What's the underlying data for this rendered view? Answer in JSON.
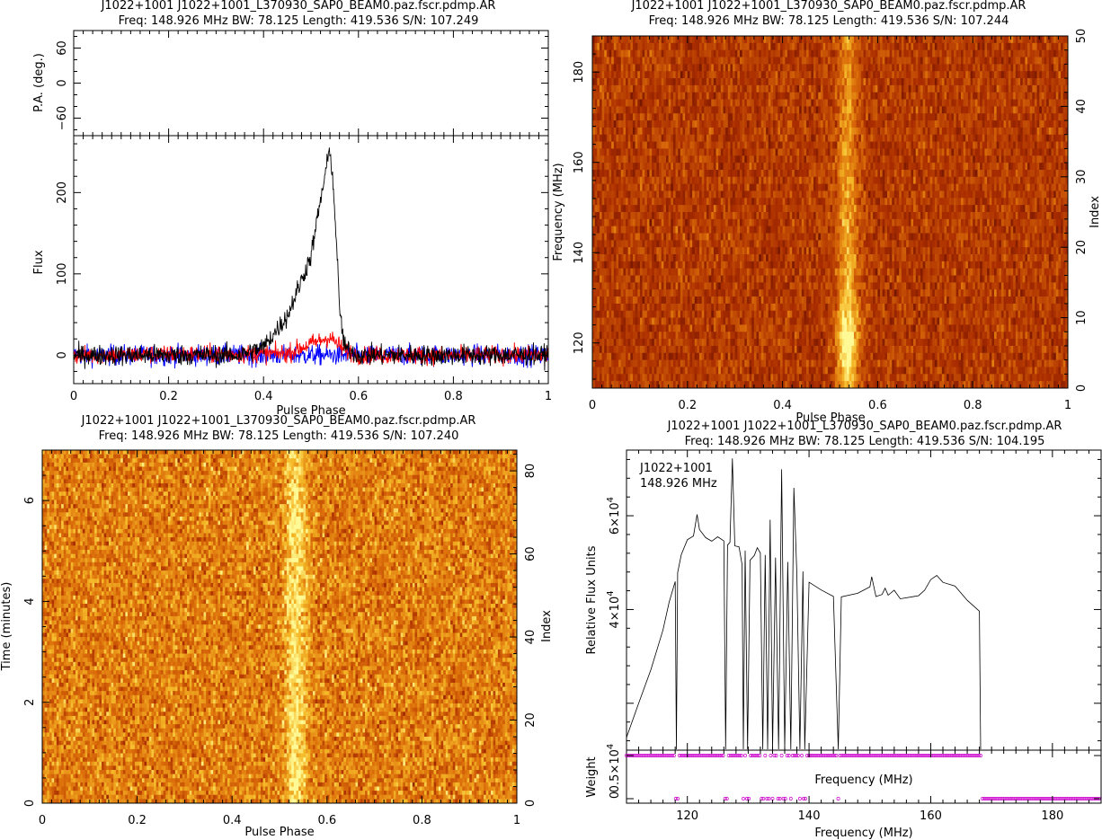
{
  "chart_data": [
    {
      "type": "line",
      "panel": "profile",
      "title": "J1022+1001  J1022+1001_L370930_SAP0_BEAM0.paz.fscr.pdmp.AR",
      "subtitle": "Freq: 148.926 MHz BW: 78.125 Length: 419.536 S/N: 107.249",
      "xlabel": "Pulse Phase",
      "ylabel": "Flux",
      "pa_ylabel": "P.A. (deg.)",
      "xlim": [
        0,
        1
      ],
      "ylim": [
        -35,
        270
      ],
      "pa_ylim": [
        -90,
        90
      ],
      "xticks": [
        "0",
        "0.2",
        "0.4",
        "0.6",
        "0.8",
        "1"
      ],
      "yticks": [
        "0",
        "100",
        "200"
      ],
      "pa_ticks": [
        "60",
        "0",
        "−60"
      ],
      "pulse_peak_phase": 0.537,
      "pulse_peak_flux": 258,
      "series": [
        {
          "color": "#000000",
          "values": [
            [
              0,
              0
            ],
            [
              0.35,
              0
            ],
            [
              0.4,
              10
            ],
            [
              0.45,
              48
            ],
            [
              0.5,
              122
            ],
            [
              0.52,
              190
            ],
            [
              0.535,
              238
            ],
            [
              0.54,
              258
            ],
            [
              0.55,
              180
            ],
            [
              0.56,
              60
            ],
            [
              0.57,
              10
            ],
            [
              0.6,
              0
            ],
            [
              1,
              0
            ]
          ]
        },
        {
          "color": "#ff0000",
          "values": [
            [
              0,
              0
            ],
            [
              0.45,
              2
            ],
            [
              0.5,
              14
            ],
            [
              0.54,
              22
            ],
            [
              0.57,
              6
            ],
            [
              0.6,
              0
            ],
            [
              1,
              0
            ]
          ]
        },
        {
          "color": "#0000ff",
          "values": [
            [
              0,
              0
            ],
            [
              1,
              0
            ]
          ]
        }
      ]
    },
    {
      "type": "heatmap",
      "panel": "frequency-phase",
      "title": "J1022+1001  J1022+1001_L370930_SAP0_BEAM0.paz.fscr.pdmp.AR",
      "subtitle": "Freq: 148.926 MHz BW: 78.125 Length: 419.536 S/N: 107.244",
      "xlabel": "Pulse Phase",
      "ylabel": "Frequency (MHz)",
      "ylabel_right": "Index",
      "xlim": [
        0,
        1
      ],
      "ylim": [
        110,
        188
      ],
      "ylim_right": [
        0,
        50
      ],
      "xticks": [
        "0",
        "0.2",
        "0.4",
        "0.6",
        "0.8",
        "1"
      ],
      "yticks": [
        "120",
        "140",
        "160",
        "180"
      ],
      "yticks_right": [
        "0",
        "10",
        "20",
        "30",
        "40",
        "50"
      ],
      "pulse_phase": 0.537,
      "rows": 50
    },
    {
      "type": "heatmap",
      "panel": "time-phase",
      "title": "J1022+1001  J1022+1001_L370930_SAP0_BEAM0.paz.fscr.pdmp.AR",
      "subtitle": "Freq: 148.926 MHz BW: 78.125 Length: 419.536 S/N: 107.240",
      "xlabel": "Pulse Phase",
      "ylabel": "Time (minutes)",
      "ylabel_right": "Index",
      "xlim": [
        0,
        1
      ],
      "ylim": [
        0,
        7
      ],
      "ylim_right": [
        0,
        85
      ],
      "xticks": [
        "0",
        "0.2",
        "0.4",
        "0.6",
        "0.8",
        "1"
      ],
      "yticks": [
        "0",
        "2",
        "4",
        "6"
      ],
      "yticks_right": [
        "0",
        "20",
        "40",
        "60",
        "80"
      ],
      "pulse_phase": 0.535,
      "rows": 85
    },
    {
      "type": "line",
      "panel": "bandpass",
      "title": "J1022+1001  J1022+1001_L370930_SAP0_BEAM0.paz.fscr.pdmp.AR",
      "subtitle": "Freq: 148.926 MHz BW: 78.125 Length: 419.536 S/N: 104.195",
      "annotation_name": "J1022+1001",
      "annotation_freq": "148.926 MHz",
      "xlabel": "Frequency (MHz)",
      "ylabel": "Relative Flux Units",
      "weight_label": "Weight",
      "inner_xlabel": "Frequency (MHz)",
      "xlim": [
        110,
        188
      ],
      "ylim": [
        10000,
        74000
      ],
      "xticks": [
        "120",
        "140",
        "160",
        "180"
      ],
      "yticks": [
        {
          "base": "4×10",
          "exp": "4",
          "value": 40000
        },
        {
          "base": "6×10",
          "exp": "4",
          "value": 60000
        }
      ],
      "weight_ticks": [
        {
          "base": "0.5×10",
          "exp": "4"
        },
        {
          "base": "0",
          "exp": ""
        }
      ],
      "series": [
        {
          "name": "",
          "color": "#000000",
          "values": [
            [
              110,
              13000
            ],
            [
              112,
              20000
            ],
            [
              114,
              27000
            ],
            [
              116,
              36000
            ],
            [
              117,
              42000
            ],
            [
              118,
              46000
            ],
            [
              118.2,
              10000
            ],
            [
              118.4,
              48000
            ],
            [
              119,
              52000
            ],
            [
              120,
              55000
            ],
            [
              121,
              56000
            ],
            [
              121.6,
              61000
            ],
            [
              122,
              57000
            ],
            [
              123,
              55500
            ],
            [
              124,
              55000
            ],
            [
              125,
              55500
            ],
            [
              126,
              54000
            ],
            [
              126.3,
              10000
            ],
            [
              126.6,
              54000
            ],
            [
              127,
              54500
            ],
            [
              127.4,
              72000
            ],
            [
              127.8,
              54000
            ],
            [
              128.5,
              53000
            ],
            [
              129,
              50000
            ],
            [
              129.2,
              10000
            ],
            [
              129.5,
              52000
            ],
            [
              129.9,
              10000
            ],
            [
              130.3,
              51000
            ],
            [
              131,
              51000
            ],
            [
              131.5,
              53000
            ],
            [
              132,
              52000
            ],
            [
              132.4,
              10000
            ],
            [
              132.8,
              52000
            ],
            [
              133.2,
              10000
            ],
            [
              133.6,
              59000
            ],
            [
              134,
              10000
            ],
            [
              134.5,
              51000
            ],
            [
              135,
              10000
            ],
            [
              135.5,
              70000
            ],
            [
              136,
              10000
            ],
            [
              136.5,
              50000
            ],
            [
              137,
              10000
            ],
            [
              137.5,
              66000
            ],
            [
              138,
              48000
            ],
            [
              138.5,
              10000
            ],
            [
              139,
              48000
            ],
            [
              139.3,
              10000
            ],
            [
              140,
              46000
            ],
            [
              142,
              44000
            ],
            [
              144,
              43000
            ],
            [
              144.8,
              10000
            ],
            [
              145.3,
              43000
            ],
            [
              148,
              43000
            ],
            [
              150,
              45000
            ],
            [
              150.3,
              47000
            ],
            [
              151,
              43000
            ],
            [
              152,
              43000
            ],
            [
              152.5,
              45000
            ],
            [
              153,
              43000
            ],
            [
              154,
              44000
            ],
            [
              155,
              42000
            ],
            [
              158,
              43000
            ],
            [
              159,
              44500
            ],
            [
              160,
              46500
            ],
            [
              161,
              47000
            ],
            [
              162,
              46000
            ],
            [
              164,
              45000
            ],
            [
              166,
              42000
            ],
            [
              168,
              40000
            ],
            [
              168.2,
              10000
            ]
          ]
        }
      ],
      "weights": {
        "color": "#cc00cc",
        "one_until": 168.4,
        "zero_from": 168.4,
        "zero_channels": [
          118.2,
          126.3,
          129.2,
          129.9,
          132.4,
          133.2,
          134,
          135,
          136,
          137,
          138.5,
          139.3,
          144.8
        ]
      }
    }
  ]
}
